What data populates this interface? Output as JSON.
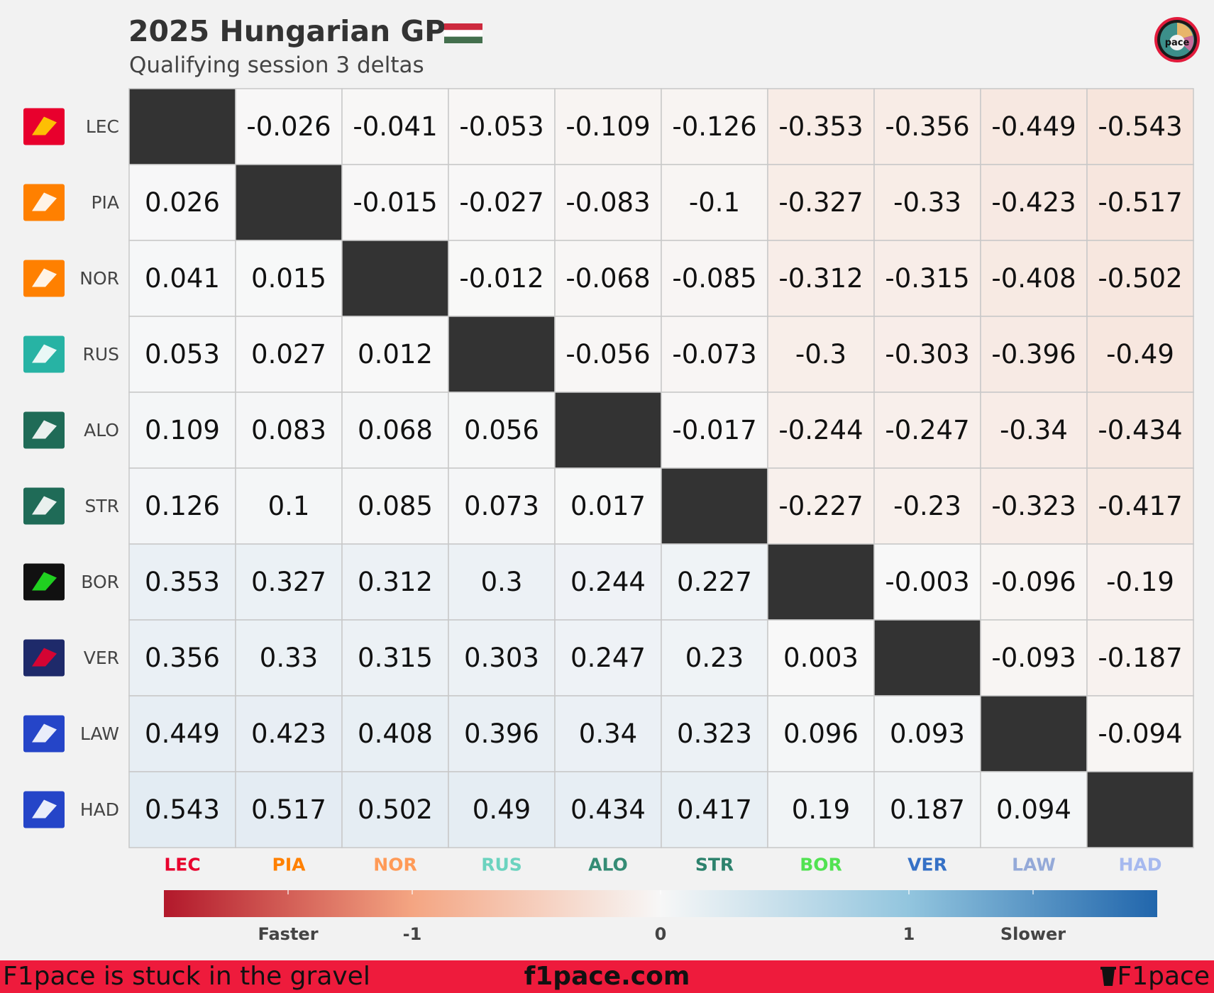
{
  "header": {
    "title": "2025 Hungarian GP",
    "subtitle": "Qualifying session 3 deltas"
  },
  "icons": {
    "flag": "hungary-flag-icon",
    "logo": "f1pace-logo-icon",
    "cup": "cup-icon"
  },
  "chart_data": {
    "type": "heatmap",
    "title": "2025 Hungarian GP",
    "subtitle": "Qualifying session 3 deltas",
    "rows": [
      "LEC",
      "PIA",
      "NOR",
      "RUS",
      "ALO",
      "STR",
      "BOR",
      "VER",
      "LAW",
      "HAD"
    ],
    "columns": [
      "LEC",
      "PIA",
      "NOR",
      "RUS",
      "ALO",
      "STR",
      "BOR",
      "VER",
      "LAW",
      "HAD"
    ],
    "column_colors": [
      "#e8002d",
      "#ff8000",
      "#ff9a57",
      "#6cd3bf",
      "#358c75",
      "#2d826d",
      "#52e252",
      "#3671c6",
      "#94a9d8",
      "#a6b9ef"
    ],
    "row_teams": [
      "Ferrari",
      "McLaren",
      "McLaren",
      "Mercedes",
      "Aston Martin",
      "Aston Martin",
      "Sauber",
      "Red Bull",
      "Racing Bulls",
      "Racing Bulls"
    ],
    "values": [
      [
        null,
        "-0.026",
        "-0.041",
        "-0.053",
        "-0.109",
        "-0.126",
        "-0.353",
        "-0.356",
        "-0.449",
        "-0.543"
      ],
      [
        "0.026",
        null,
        "-0.015",
        "-0.027",
        "-0.083",
        "-0.1",
        "-0.327",
        "-0.33",
        "-0.423",
        "-0.517"
      ],
      [
        "0.041",
        "0.015",
        null,
        "-0.012",
        "-0.068",
        "-0.085",
        "-0.312",
        "-0.315",
        "-0.408",
        "-0.502"
      ],
      [
        "0.053",
        "0.027",
        "0.012",
        null,
        "-0.056",
        "-0.073",
        "-0.3",
        "-0.303",
        "-0.396",
        "-0.49"
      ],
      [
        "0.109",
        "0.083",
        "0.068",
        "0.056",
        null,
        "-0.017",
        "-0.244",
        "-0.247",
        "-0.34",
        "-0.434"
      ],
      [
        "0.126",
        "0.1",
        "0.085",
        "0.073",
        "0.017",
        null,
        "-0.227",
        "-0.23",
        "-0.323",
        "-0.417"
      ],
      [
        "0.353",
        "0.327",
        "0.312",
        "0.3",
        "0.244",
        "0.227",
        null,
        "-0.003",
        "-0.096",
        "-0.19"
      ],
      [
        "0.356",
        "0.33",
        "0.315",
        "0.303",
        "0.247",
        "0.23",
        "0.003",
        null,
        "-0.093",
        "-0.187"
      ],
      [
        "0.449",
        "0.423",
        "0.408",
        "0.396",
        "0.34",
        "0.323",
        "0.096",
        "0.093",
        null,
        "-0.094"
      ],
      [
        "0.543",
        "0.517",
        "0.502",
        "0.49",
        "0.434",
        "0.417",
        "0.19",
        "0.187",
        "0.094",
        null
      ]
    ],
    "colorbar": {
      "range": [
        -2,
        2
      ],
      "ticks": [
        -1.5,
        -1,
        0,
        1,
        1.5
      ],
      "tick_labels": [
        "Faster",
        "-1",
        "0",
        "1",
        "Slower"
      ],
      "colors": [
        "#b2182b",
        "#f4a582",
        "#f7f7f7",
        "#92c5de",
        "#2166ac"
      ]
    }
  },
  "footer": {
    "left": "F1pace is stuck in the gravel",
    "center": "f1pace.com",
    "right": "F1pace"
  }
}
